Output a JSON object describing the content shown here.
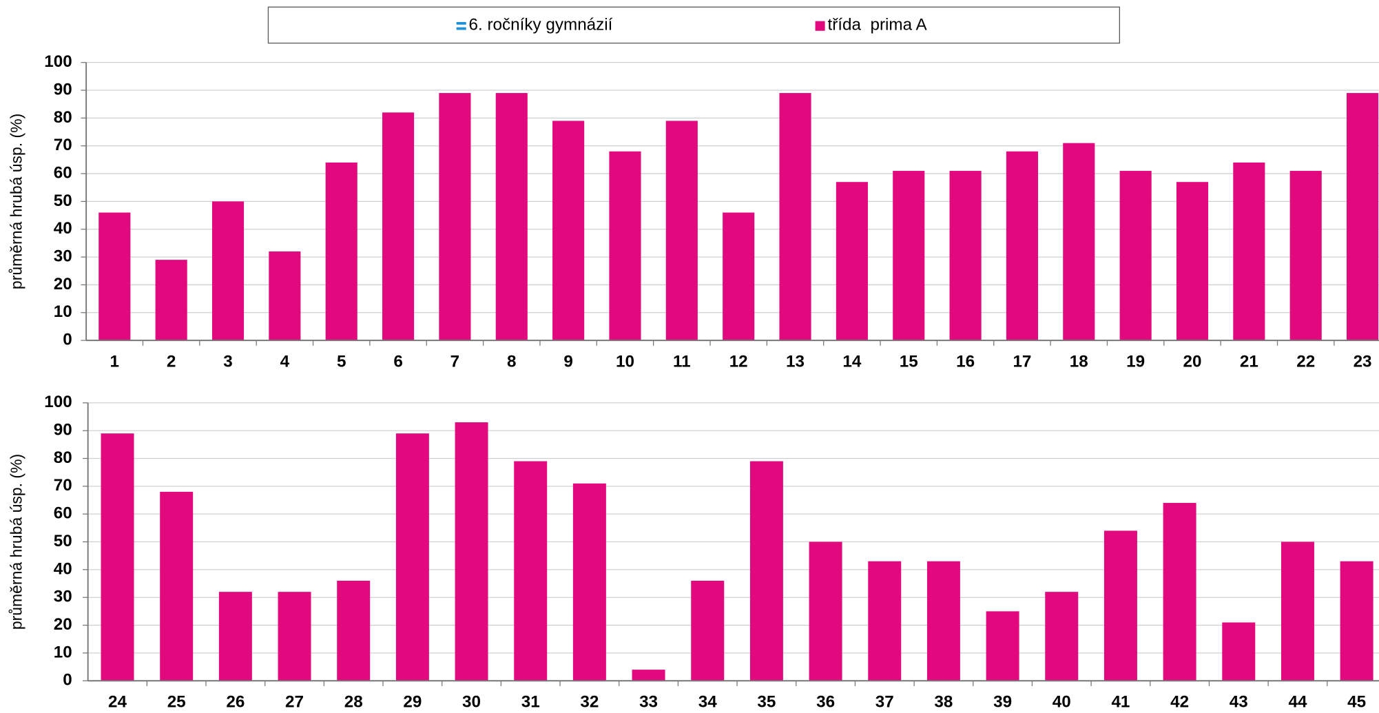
{
  "legend": {
    "items": [
      {
        "name": "6. ročníky gymnázií",
        "color": "#1f8fd6"
      },
      {
        "name": "třída  prima A",
        "color": "#e2097f"
      }
    ]
  },
  "chart_data": [
    {
      "type": "bar",
      "ylabel": "průměrná hrubá úsp. (%)",
      "categories": [
        "1",
        "2",
        "3",
        "4",
        "5",
        "6",
        "7",
        "8",
        "9",
        "10",
        "11",
        "12",
        "13",
        "14",
        "15",
        "16",
        "17",
        "18",
        "19",
        "20",
        "21",
        "22",
        "23"
      ],
      "values": [
        46,
        29,
        50,
        32,
        64,
        82,
        89,
        89,
        79,
        68,
        79,
        46,
        89,
        57,
        61,
        61,
        68,
        71,
        61,
        57,
        64,
        61,
        89
      ],
      "color": "#e2097f",
      "ylim": [
        0,
        100
      ],
      "yticks": [
        0,
        10,
        20,
        30,
        40,
        50,
        60,
        70,
        80,
        90,
        100
      ],
      "grid": true
    },
    {
      "type": "bar",
      "ylabel": "průměrná hrubá úsp. (%)",
      "categories": [
        "24",
        "25",
        "26",
        "27",
        "28",
        "29",
        "30",
        "31",
        "32",
        "33",
        "34",
        "35",
        "36",
        "37",
        "38",
        "39",
        "40",
        "41",
        "42",
        "43",
        "44",
        "45"
      ],
      "values": [
        89,
        68,
        32,
        32,
        36,
        89,
        93,
        79,
        71,
        4,
        36,
        79,
        50,
        43,
        43,
        25,
        32,
        54,
        64,
        21,
        50,
        43
      ],
      "color": "#e2097f",
      "ylim": [
        0,
        100
      ],
      "yticks": [
        0,
        10,
        20,
        30,
        40,
        50,
        60,
        70,
        80,
        90,
        100
      ],
      "grid": true
    }
  ]
}
